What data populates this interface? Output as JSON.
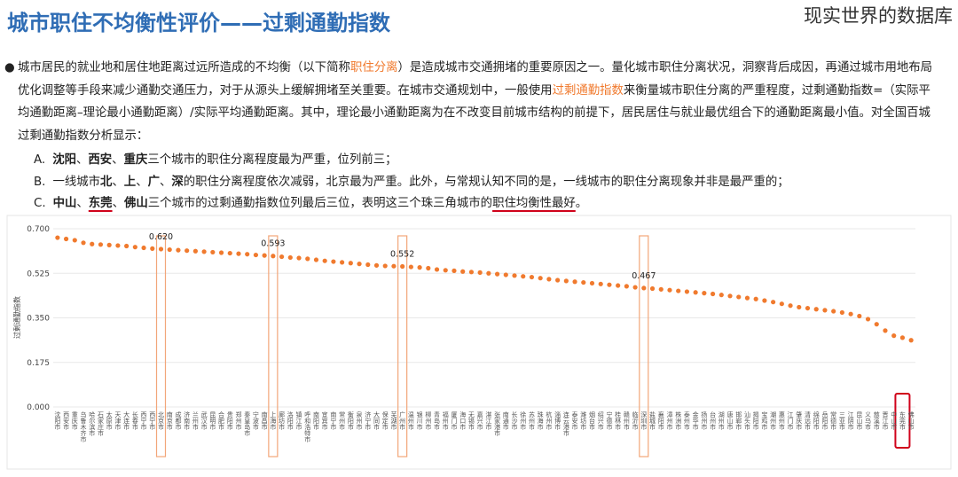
{
  "header": {
    "title": "城市职住不均衡性评价——过剩通勤指数",
    "watermark": "现实世界的数据库"
  },
  "intro": {
    "bullet": "●",
    "segments": [
      {
        "text": "城市居民的就业地和居住地距离过远所造成的不均衡（以下简称"
      },
      {
        "text": "职住分离",
        "style": "orange"
      },
      {
        "text": "）是造成城市交通拥堵的重要原因之一。量化城市职住分离状况，洞察背后成因，再通过城市用地布局优化调整等手段来减少通勤交通压力，对于从源头上缓解拥堵至关重要。在城市交通规划中，一般使用"
      },
      {
        "text": "过剩通勤指数",
        "style": "orange"
      },
      {
        "text": "来衡量城市职住分离的严重程度，过剩通勤指数=（实际平均通勤距离–理论最小通勤距离）/实际平均通勤距离。其中，理论最小通勤距离为在不改变目前城市结构的前提下，居民居住与就业最优组合下的通勤距离最小值。对全国百城过剩通勤指数分析显示："
      }
    ]
  },
  "items": [
    {
      "marker": "A.",
      "segments": [
        {
          "text": "沈阳",
          "style": "bold"
        },
        {
          "text": "、"
        },
        {
          "text": "西安",
          "style": "bold"
        },
        {
          "text": "、"
        },
        {
          "text": "重庆",
          "style": "bold"
        },
        {
          "text": "三个城市的职住分离程度最为严重，位列前三；"
        }
      ]
    },
    {
      "marker": "B.",
      "segments": [
        {
          "text": "一线城市"
        },
        {
          "text": "北",
          "style": "bold"
        },
        {
          "text": "、"
        },
        {
          "text": "上",
          "style": "bold"
        },
        {
          "text": "、"
        },
        {
          "text": "广",
          "style": "bold"
        },
        {
          "text": "、"
        },
        {
          "text": "深",
          "style": "bold"
        },
        {
          "text": "的职住分离程度依次减弱，北京最为严重。此外，与常规认知不同的是，一线城市的职住分离现象并非是最严重的；"
        }
      ]
    },
    {
      "marker": "C.",
      "segments": [
        {
          "text": "中山",
          "style": "bold"
        },
        {
          "text": "、"
        },
        {
          "text": "东莞",
          "style": "bold-under"
        },
        {
          "text": "、"
        },
        {
          "text": "佛山",
          "style": "bold"
        },
        {
          "text": "三个城市的过剩通勤指数位列最后三位，表明这三个珠三角城市的"
        },
        {
          "text": "职住均衡性最好",
          "style": "under"
        },
        {
          "text": "。"
        }
      ]
    }
  ],
  "chart_data": {
    "type": "scatter",
    "y_label": "过剩通勤指数",
    "color": "#f07a2e",
    "grid": true,
    "ylim": [
      0,
      0.7
    ],
    "yticks": [
      {
        "value": 0,
        "label": "0.000"
      },
      {
        "value": 0.175,
        "label": "0.175"
      },
      {
        "value": 0.35,
        "label": "0.350"
      },
      {
        "value": 0.525,
        "label": "0.525"
      },
      {
        "value": 0.7,
        "label": "0.700"
      }
    ],
    "highlight": [
      12,
      25,
      40,
      68
    ],
    "highlight_color": "#f2a679",
    "focus": [
      98
    ],
    "focus_color": "#d0021b",
    "categories": [
      "沈阳市",
      "西安市",
      "重庆市",
      "乌鲁木齐市",
      "哈尔滨市",
      "石家庄市",
      "太原市",
      "天津市",
      "大连市",
      "长春市",
      "西宁市",
      "西宁市",
      "北京市",
      "南京市",
      "成都市",
      "济南市",
      "兰州市",
      "武汉市",
      "昆明市",
      "合肥市",
      "贵阳市",
      "郑州市",
      "秦皇岛市",
      "宁波市",
      "南昌市",
      "上海市",
      "廊坊市",
      "洛阳市",
      "镇江市",
      "呼和浩特市",
      "南阳市",
      "宜宾市",
      "南宁市",
      "常州市",
      "衡阳市",
      "泉州市",
      "济宁市",
      "大同市",
      "保定市",
      "芜湖市",
      "广州市",
      "温州市",
      "银川市",
      "柳州市",
      "青岛市",
      "福州市",
      "厦门市",
      "海口市",
      "无锡市",
      "嘉兴市",
      "湛江市",
      "张家港市",
      "南通市",
      "长沙市",
      "徐州市",
      "苏州市",
      "珠海市",
      "杭州市",
      "淄博市",
      "连云港市",
      "泰安市",
      "潍坊市",
      "烟台市",
      "绍兴市",
      "宁德市",
      "桂林市",
      "赣州市",
      "临沂市",
      "深圳市",
      "盐城市",
      "襄阳市",
      "漳州市",
      "株洲市",
      "泰州市",
      "金华市",
      "扬州市",
      "台州市",
      "湖州市",
      "唐山市",
      "邯郸市",
      "汕头市",
      "揭阳市",
      "宝鸡市",
      "潮州市",
      "惠州市",
      "江门市",
      "肇庆市",
      "清远市",
      "绵阳市",
      "岳阳市",
      "常德市",
      "三亚市",
      "江阴市",
      "昆山市",
      "义乌市",
      "慈溪市",
      "晋江市",
      "中山市",
      "东莞市",
      "佛山市"
    ],
    "values": [
      0.665,
      0.66,
      0.655,
      0.645,
      0.64,
      0.638,
      0.636,
      0.634,
      0.632,
      0.628,
      0.625,
      0.622,
      0.62,
      0.618,
      0.616,
      0.614,
      0.612,
      0.61,
      0.608,
      0.606,
      0.604,
      0.602,
      0.6,
      0.597,
      0.595,
      0.593,
      0.59,
      0.587,
      0.585,
      0.582,
      0.578,
      0.574,
      0.571,
      0.568,
      0.565,
      0.562,
      0.559,
      0.556,
      0.554,
      0.553,
      0.552,
      0.55,
      0.548,
      0.545,
      0.54,
      0.537,
      0.535,
      0.532,
      0.53,
      0.528,
      0.525,
      0.522,
      0.519,
      0.516,
      0.513,
      0.51,
      0.506,
      0.502,
      0.498,
      0.495,
      0.492,
      0.489,
      0.486,
      0.483,
      0.48,
      0.477,
      0.474,
      0.47,
      0.467,
      0.465,
      0.462,
      0.459,
      0.456,
      0.453,
      0.45,
      0.447,
      0.444,
      0.44,
      0.436,
      0.432,
      0.428,
      0.424,
      0.418,
      0.412,
      0.405,
      0.398,
      0.392,
      0.388,
      0.384,
      0.38,
      0.376,
      0.371,
      0.365,
      0.357,
      0.345,
      0.325,
      0.3,
      0.28,
      0.272,
      0.262
    ],
    "value_labels": [
      null,
      null,
      null,
      null,
      null,
      null,
      null,
      null,
      null,
      null,
      null,
      null,
      "0.620",
      null,
      null,
      null,
      null,
      null,
      null,
      null,
      null,
      null,
      null,
      null,
      null,
      "0.593",
      null,
      null,
      null,
      null,
      null,
      null,
      null,
      null,
      null,
      null,
      null,
      null,
      null,
      null,
      "0.552",
      null,
      null,
      null,
      null,
      null,
      null,
      null,
      null,
      null,
      null,
      null,
      null,
      null,
      null,
      null,
      null,
      null,
      null,
      null,
      null,
      null,
      null,
      null,
      null,
      null,
      null,
      null,
      "0.467",
      null,
      null,
      null,
      null,
      null,
      null,
      null,
      null,
      null,
      null,
      null,
      null,
      null,
      null,
      null,
      null,
      null,
      null,
      null,
      null,
      null,
      null,
      null,
      null,
      null,
      null,
      null,
      null,
      null,
      null,
      null
    ]
  }
}
